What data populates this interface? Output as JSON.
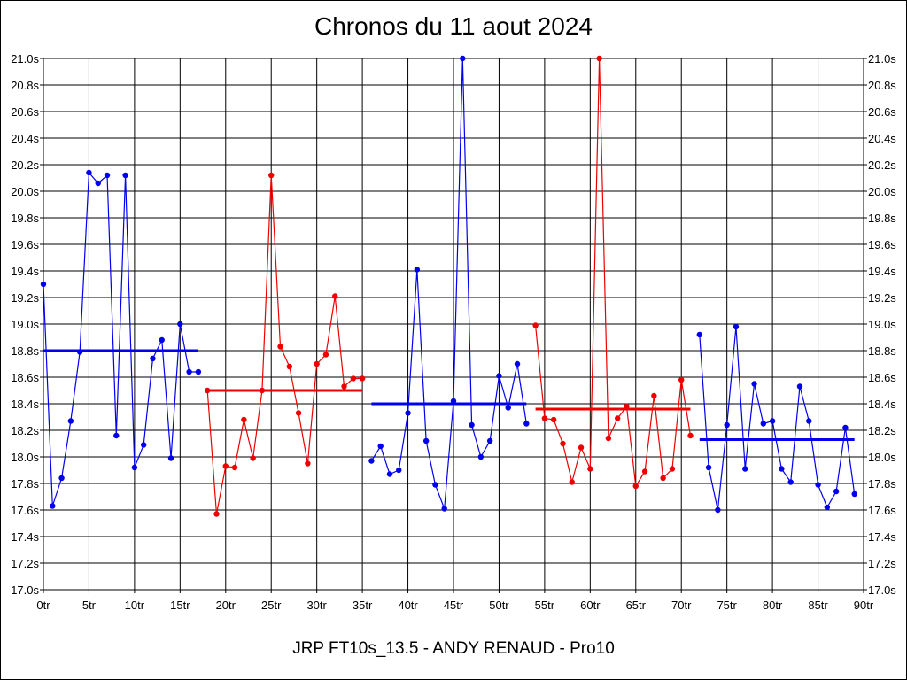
{
  "chart_data": {
    "type": "line",
    "title": "Chronos du 11 aout 2024",
    "subtitle": "JRP FT10s_13.5 - ANDY RENAUD - Pro10",
    "y_axis": {
      "min": 17.0,
      "max": 21.0,
      "step": 0.2,
      "unit_suffix": "s",
      "tick_labels": [
        "17.0s",
        "17.2s",
        "17.4s",
        "17.6s",
        "17.8s",
        "18.0s",
        "18.2s",
        "18.4s",
        "18.6s",
        "18.8s",
        "19.0s",
        "19.2s",
        "19.4s",
        "19.6s",
        "19.8s",
        "20.0s",
        "20.2s",
        "20.4s",
        "20.6s",
        "20.8s",
        "21.0s"
      ]
    },
    "x_axis": {
      "min": 0,
      "max": 90,
      "step": 5,
      "tick_labels": [
        "0tr",
        "5tr",
        "10tr",
        "15tr",
        "20tr",
        "25tr",
        "30tr",
        "35tr",
        "40tr",
        "45tr",
        "50tr",
        "55tr",
        "60tr",
        "65tr",
        "70tr",
        "75tr",
        "80tr",
        "85tr",
        "90tr"
      ]
    },
    "grid": true,
    "series": [
      {
        "color": "#0000ee",
        "x_start": 0,
        "values": [
          19.3,
          17.63,
          17.84,
          18.27,
          18.79,
          20.14,
          20.06,
          20.12,
          18.16,
          20.12,
          17.92,
          18.09,
          18.74,
          18.88,
          17.99,
          19.0,
          18.64,
          18.64
        ],
        "average": 18.8
      },
      {
        "color": "#ee0000",
        "x_start": 18,
        "values": [
          18.5,
          17.57,
          17.93,
          17.92,
          18.28,
          17.99,
          18.5,
          20.12,
          18.83,
          18.68,
          18.33,
          17.95,
          18.7,
          18.77,
          19.21,
          18.53,
          18.59,
          18.59
        ],
        "average": 18.5
      },
      {
        "color": "#0000ee",
        "x_start": 36,
        "values": [
          17.97,
          18.08,
          17.87,
          17.9,
          18.33,
          19.41,
          18.12,
          17.79,
          17.61,
          18.42,
          21.0,
          18.24,
          18.0,
          18.12,
          18.61,
          18.37,
          18.7,
          18.25
        ],
        "average": 18.4
      },
      {
        "color": "#ee0000",
        "x_start": 54,
        "values": [
          18.99,
          18.29,
          18.28,
          18.1,
          17.81,
          18.07,
          17.91,
          21.0,
          18.14,
          18.29,
          18.38,
          17.78,
          17.89,
          18.46,
          17.84,
          17.91,
          18.58,
          18.16
        ],
        "average": 18.36
      },
      {
        "color": "#0000ee",
        "x_start": 72,
        "values": [
          18.92,
          17.92,
          17.6,
          18.24,
          18.98,
          17.91,
          18.55,
          18.25,
          18.27,
          17.91,
          17.81,
          18.53,
          18.27,
          17.79,
          17.62,
          17.74,
          18.22,
          17.72
        ],
        "average": 18.13
      }
    ]
  }
}
